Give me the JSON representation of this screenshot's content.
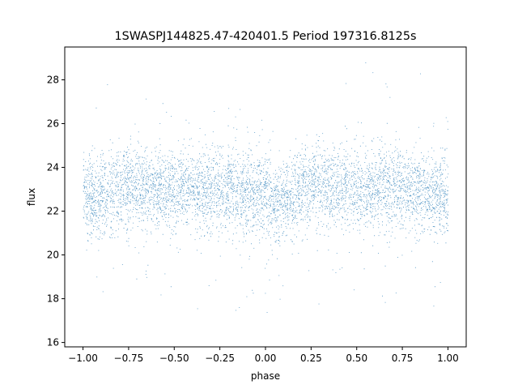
{
  "chart_data": {
    "type": "scatter",
    "title": "1SWASPJ144825.47-420401.5 Period 197316.8125s",
    "xlabel": "phase",
    "ylabel": "flux",
    "xlim": [
      -1.1,
      1.1
    ],
    "ylim": [
      15.8,
      29.5
    ],
    "xticks": [
      -1.0,
      -0.75,
      -0.5,
      -0.25,
      0.0,
      0.25,
      0.5,
      0.75,
      1.0
    ],
    "xtick_labels": [
      "−1.00",
      "−0.75",
      "−0.50",
      "−0.25",
      "0.00",
      "0.25",
      "0.50",
      "0.75",
      "1.00"
    ],
    "yticks": [
      16,
      18,
      20,
      22,
      24,
      26,
      28
    ],
    "ytick_labels": [
      "16",
      "18",
      "20",
      "22",
      "24",
      "26",
      "28"
    ],
    "grid": false,
    "marker_color": "#1f77b4",
    "series": [
      {
        "values_summary": {
          "x_range": [
            -1.0,
            1.0
          ],
          "y_core_range": [
            20.5,
            25.0
          ],
          "y_full_range": [
            16.3,
            29.2
          ],
          "phase_profile": [
            {
              "x": -1.0,
              "y": 22.8
            },
            {
              "x": -0.95,
              "y": 22.6
            },
            {
              "x": -0.75,
              "y": 23.2
            },
            {
              "x": -0.5,
              "y": 23.0
            },
            {
              "x": -0.25,
              "y": 23.1
            },
            {
              "x": 0.0,
              "y": 22.7
            },
            {
              "x": 0.05,
              "y": 22.3
            },
            {
              "x": 0.25,
              "y": 23.3
            },
            {
              "x": 0.5,
              "y": 23.0
            },
            {
              "x": 0.75,
              "y": 23.2
            },
            {
              "x": 0.8,
              "y": 23.0
            },
            {
              "x": 1.0,
              "y": 22.7
            }
          ]
        }
      }
    ]
  }
}
